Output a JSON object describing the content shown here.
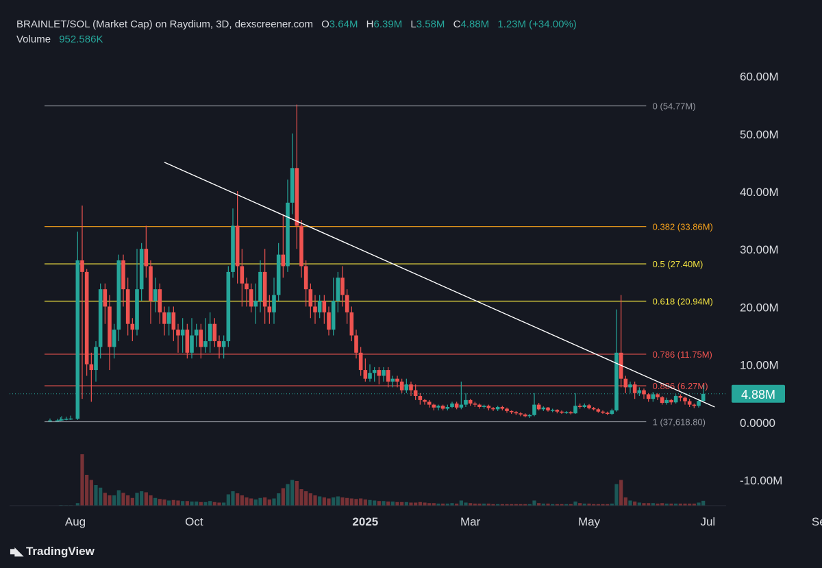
{
  "header": {
    "symbol_line": "BRAINLET/SOL (Market Cap) on Raydium, 3D, dexscreener.com",
    "o_label": "O",
    "o_value": "3.64M",
    "h_label": "H",
    "h_value": "6.39M",
    "l_label": "L",
    "l_value": "3.58M",
    "c_label": "C",
    "c_value": "4.88M",
    "change": "1.23M (+34.00%)",
    "volume_label": "Volume",
    "volume_value": "952.586K"
  },
  "brand": "TradingView",
  "colors": {
    "background": "#151821",
    "up": "#26a69a",
    "down": "#ef5350",
    "fib_orange": "#f7a21b",
    "fib_yellow": "#f2e241",
    "fib_red": "#e53935",
    "fib_grey": "#8a8d96",
    "trendline": "#ffffff",
    "price_tag": "#26a69a"
  },
  "chart_data": {
    "type": "candlestick",
    "x_tick_labels": [
      "Aug",
      "Oct",
      "2025",
      "Mar",
      "May",
      "Jul",
      "Sep"
    ],
    "y_tick_labels": [
      "60.00M",
      "50.00M",
      "40.00M",
      "30.00M",
      "20.00M",
      "10.00M",
      "0.0000",
      "-10.00M"
    ],
    "y_tick_values": [
      60,
      50,
      40,
      30,
      20,
      10,
      0,
      -10
    ],
    "y_unit": "M",
    "ylim": [
      -14.5,
      66
    ],
    "current_price_label": "4.88M",
    "current_price": 4.88,
    "fib_levels": [
      {
        "label": "0 (54.77M)",
        "value": 54.77,
        "color": "#9598a1"
      },
      {
        "label": "0.382 (33.86M)",
        "value": 33.86,
        "color": "#f7a21b"
      },
      {
        "label": "0.5 (27.40M)",
        "value": 27.4,
        "color": "#f2e241"
      },
      {
        "label": "0.618 (20.94M)",
        "value": 20.94,
        "color": "#f2e241"
      },
      {
        "label": "0.786 (11.75M)",
        "value": 11.75,
        "color": "#ef5350"
      },
      {
        "label": "0.886 (6.27M)",
        "value": 6.27,
        "color": "#ef5350"
      },
      {
        "label": "1 (37,618.80)",
        "value": 0.0376,
        "color": "#9598a1"
      }
    ],
    "trendline": [
      {
        "x": 54,
        "y": 45.0
      },
      {
        "x": 295,
        "y": 2.6
      }
    ],
    "candles": [
      [
        3.9,
        0.2,
        0.27,
        0.1,
        0.6,
        0.05
      ],
      [
        7.08,
        0.2,
        0.27,
        0.1,
        0.55,
        0.05
      ],
      [
        8.5,
        0.27,
        0.4,
        0.18,
        0.8,
        0.1
      ],
      [
        9.0,
        0.35,
        0.45,
        0.25,
        1.0,
        0.1
      ],
      [
        11.0,
        0.45,
        0.55,
        0.3,
        0.9,
        0.1
      ],
      [
        13.0,
        0.5,
        0.6,
        0.35,
        1.1,
        0.1
      ],
      [
        16.0,
        0.55,
        28.0,
        0.35,
        33.0,
        0.5
      ],
      [
        18.0,
        28.0,
        26.0,
        4.0,
        37.5,
        10.0
      ],
      [
        20.0,
        26.0,
        10.0,
        8.0,
        26.5,
        6.0
      ],
      [
        22.0,
        10.0,
        9.0,
        3.5,
        12.0,
        5.0
      ],
      [
        24.0,
        9.0,
        13.0,
        7.0,
        14.0,
        4.0
      ],
      [
        26.0,
        13.0,
        23.0,
        11.0,
        24.0,
        3.5
      ],
      [
        28.0,
        23.0,
        20.0,
        17.0,
        24.0,
        2.5
      ],
      [
        30.0,
        20.0,
        13.0,
        9.0,
        22.0,
        2.0
      ],
      [
        32.0,
        13.0,
        16.0,
        11.0,
        17.0,
        2.0
      ],
      [
        34.0,
        16.0,
        28.0,
        14.0,
        29.0,
        3.0
      ],
      [
        36.0,
        28.0,
        23.0,
        20.0,
        29.0,
        2.5
      ],
      [
        38.0,
        23.0,
        17.0,
        15.0,
        25.0,
        2.0
      ],
      [
        40.0,
        17.0,
        16.0,
        14.0,
        18.0,
        1.5
      ],
      [
        42.0,
        16.0,
        23.0,
        15.0,
        30.0,
        2.5
      ],
      [
        44.0,
        23.0,
        30.0,
        21.0,
        31.0,
        2.8
      ],
      [
        46.0,
        30.0,
        27.0,
        25.0,
        34.0,
        2.6
      ],
      [
        48.0,
        27.0,
        21.0,
        17.0,
        28.0,
        2.0
      ],
      [
        50.0,
        21.0,
        23.0,
        19.0,
        25.0,
        1.5
      ],
      [
        52.0,
        23.0,
        19.0,
        17.0,
        24.0,
        1.3
      ],
      [
        54.0,
        19.0,
        17.0,
        15.0,
        20.0,
        1.2
      ],
      [
        56.0,
        17.0,
        19.0,
        15.0,
        20.0,
        1.0
      ],
      [
        58.0,
        19.0,
        16.0,
        14.0,
        20.0,
        1.1
      ],
      [
        60.0,
        16.0,
        15.0,
        12.0,
        17.0,
        1.0
      ],
      [
        62.0,
        15.0,
        16.0,
        12.0,
        18.0,
        0.9
      ],
      [
        64.0,
        16.0,
        12.0,
        11.0,
        17.0,
        0.9
      ],
      [
        66.0,
        12.0,
        15.0,
        11.0,
        18.0,
        0.8
      ],
      [
        68.0,
        15.0,
        16.0,
        13.0,
        17.0,
        0.8
      ],
      [
        70.0,
        16.0,
        13.0,
        11.0,
        17.0,
        0.7
      ],
      [
        72.0,
        13.0,
        14.0,
        12.0,
        18.0,
        0.7
      ],
      [
        74.0,
        14.0,
        17.0,
        12.0,
        19.0,
        0.9
      ],
      [
        76.0,
        17.0,
        14.0,
        13.0,
        18.0,
        0.7
      ],
      [
        78.0,
        14.0,
        13.0,
        11.0,
        15.0,
        0.6
      ],
      [
        80.0,
        13.0,
        14.0,
        11.0,
        15.0,
        0.6
      ],
      [
        82.0,
        14.0,
        26.0,
        13.0,
        27.0,
        2.2
      ],
      [
        84.0,
        26.0,
        34.0,
        25.0,
        37.0,
        2.8
      ],
      [
        86.0,
        34.0,
        27.0,
        24.0,
        40.0,
        2.4
      ],
      [
        88.0,
        27.0,
        24.0,
        20.0,
        30.0,
        2.0
      ],
      [
        90.0,
        24.0,
        23.0,
        20.0,
        25.0,
        1.6
      ],
      [
        92.0,
        23.0,
        20.0,
        19.0,
        24.0,
        1.4
      ],
      [
        94.0,
        20.0,
        21.0,
        17.0,
        24.0,
        1.2
      ],
      [
        96.0,
        21.0,
        26.0,
        19.0,
        28.0,
        1.5
      ],
      [
        98.0,
        26.0,
        20.0,
        17.0,
        30.0,
        1.6
      ],
      [
        100.0,
        20.0,
        19.0,
        17.0,
        22.0,
        1.2
      ],
      [
        102.0,
        19.0,
        22.0,
        17.0,
        25.0,
        1.4
      ],
      [
        104.0,
        22.0,
        29.0,
        21.0,
        31.0,
        2.4
      ],
      [
        106.0,
        29.0,
        27.0,
        25.0,
        36.0,
        3.4
      ],
      [
        108.0,
        27.0,
        38.0,
        26.0,
        42.0,
        4.2
      ],
      [
        110.0,
        38.0,
        44.0,
        36.0,
        50.0,
        5.0
      ],
      [
        112.0,
        44.0,
        34.0,
        30.0,
        55.0,
        4.8
      ],
      [
        114.0,
        34.0,
        27.0,
        25.0,
        35.0,
        3.2
      ],
      [
        116.0,
        27.0,
        23.0,
        20.0,
        28.0,
        2.8
      ],
      [
        118.0,
        23.0,
        20.0,
        18.0,
        24.0,
        2.4
      ],
      [
        120.0,
        20.0,
        19.0,
        17.0,
        22.0,
        2.0
      ],
      [
        122.0,
        19.0,
        21.0,
        18.0,
        22.0,
        1.8
      ],
      [
        124.0,
        21.0,
        19.0,
        17.0,
        22.0,
        1.6
      ],
      [
        126.0,
        19.0,
        16.0,
        15.0,
        20.0,
        1.4
      ],
      [
        128.0,
        16.0,
        21.0,
        15.0,
        25.0,
        1.6
      ],
      [
        130.0,
        21.0,
        25.0,
        19.0,
        26.0,
        1.8
      ],
      [
        132.0,
        25.0,
        22.0,
        20.0,
        27.0,
        1.6
      ],
      [
        134.0,
        22.0,
        19.0,
        17.0,
        23.0,
        1.5
      ],
      [
        136.0,
        19.0,
        15.0,
        14.0,
        20.0,
        1.4
      ],
      [
        138.0,
        15.0,
        12.0,
        11.0,
        16.0,
        1.3
      ],
      [
        140.0,
        12.0,
        9.0,
        8.0,
        13.0,
        1.4
      ],
      [
        142.0,
        9.0,
        7.5,
        7.0,
        11.0,
        1.2
      ],
      [
        144.0,
        7.5,
        8.5,
        7.0,
        10.0,
        1.1
      ],
      [
        146.0,
        8.5,
        9.0,
        7.0,
        9.5,
        1.0
      ],
      [
        148.0,
        9.0,
        8.0,
        6.5,
        9.5,
        0.9
      ],
      [
        150.0,
        8.0,
        9.0,
        7.0,
        9.5,
        0.9
      ],
      [
        152.0,
        9.0,
        7.0,
        6.0,
        9.5,
        0.8
      ],
      [
        154.0,
        7.0,
        7.5,
        6.0,
        8.0,
        0.8
      ],
      [
        156.0,
        7.5,
        7.0,
        6.0,
        8.0,
        0.7
      ],
      [
        158.0,
        7.0,
        5.5,
        5.0,
        7.5,
        0.7
      ],
      [
        160.0,
        5.5,
        6.5,
        5.0,
        7.5,
        0.7
      ],
      [
        162.0,
        6.5,
        5.5,
        4.5,
        7.0,
        0.6
      ],
      [
        164.0,
        5.5,
        4.5,
        3.8,
        6.5,
        0.6
      ],
      [
        166.0,
        4.5,
        3.8,
        3.0,
        5.0,
        0.7
      ],
      [
        168.0,
        3.8,
        3.5,
        3.0,
        4.0,
        0.6
      ],
      [
        170.0,
        3.5,
        3.0,
        2.5,
        3.8,
        0.5
      ],
      [
        172.0,
        3.0,
        2.5,
        2.0,
        3.2,
        0.5
      ],
      [
        174.0,
        2.5,
        2.8,
        2.0,
        3.0,
        0.4
      ],
      [
        176.0,
        2.8,
        2.3,
        2.0,
        3.0,
        0.4
      ],
      [
        178.0,
        2.3,
        2.6,
        2.0,
        3.0,
        0.4
      ],
      [
        180.0,
        2.6,
        3.2,
        2.4,
        3.5,
        0.5
      ],
      [
        182.0,
        3.2,
        2.5,
        2.2,
        3.5,
        0.4
      ],
      [
        184.0,
        2.5,
        3.0,
        2.2,
        7.0,
        1.0
      ],
      [
        186.0,
        3.0,
        3.8,
        2.6,
        5.0,
        0.6
      ],
      [
        188.0,
        3.8,
        3.2,
        2.8,
        4.0,
        0.5
      ],
      [
        190.0,
        3.2,
        3.0,
        2.6,
        3.5,
        0.4
      ],
      [
        192.0,
        3.0,
        2.6,
        2.3,
        3.2,
        0.4
      ],
      [
        194.0,
        2.6,
        2.8,
        2.3,
        3.0,
        0.4
      ],
      [
        196.0,
        2.8,
        2.4,
        2.0,
        3.0,
        0.4
      ],
      [
        198.0,
        2.4,
        2.2,
        1.9,
        2.6,
        0.3
      ],
      [
        200.0,
        2.2,
        2.6,
        1.9,
        2.8,
        0.3
      ],
      [
        202.0,
        2.6,
        2.3,
        2.0,
        2.8,
        0.3
      ],
      [
        204.0,
        2.3,
        1.9,
        1.6,
        2.5,
        0.3
      ],
      [
        206.0,
        1.9,
        1.7,
        1.4,
        2.0,
        0.3
      ],
      [
        208.0,
        1.7,
        1.5,
        1.2,
        1.9,
        0.3
      ],
      [
        210.0,
        1.5,
        1.3,
        1.0,
        1.7,
        0.3
      ],
      [
        212.0,
        1.3,
        1.0,
        0.8,
        1.5,
        0.3
      ],
      [
        214.0,
        1.0,
        1.2,
        0.7,
        1.4,
        0.3
      ],
      [
        216.0,
        1.2,
        3.0,
        1.0,
        5.0,
        1.0
      ],
      [
        218.0,
        3.0,
        2.2,
        2.0,
        3.3,
        0.5
      ],
      [
        220.0,
        2.2,
        2.5,
        1.9,
        2.7,
        0.4
      ],
      [
        222.0,
        2.5,
        2.0,
        1.8,
        2.6,
        0.4
      ],
      [
        224.0,
        2.0,
        2.1,
        1.7,
        2.3,
        0.3
      ],
      [
        226.0,
        2.1,
        1.8,
        1.5,
        2.2,
        0.3
      ],
      [
        228.0,
        1.8,
        1.6,
        1.4,
        2.0,
        0.3
      ],
      [
        230.0,
        1.6,
        1.7,
        1.4,
        1.9,
        0.3
      ],
      [
        232.0,
        1.7,
        1.5,
        1.3,
        1.9,
        0.3
      ],
      [
        234.0,
        1.5,
        2.8,
        1.4,
        5.0,
        0.8
      ],
      [
        236.0,
        2.8,
        2.6,
        2.3,
        3.2,
        0.5
      ],
      [
        238.0,
        2.6,
        2.9,
        2.4,
        3.2,
        0.4
      ],
      [
        240.0,
        2.9,
        2.4,
        2.2,
        3.1,
        0.4
      ],
      [
        242.0,
        2.4,
        2.2,
        2.0,
        2.6,
        0.3
      ],
      [
        244.0,
        2.2,
        1.8,
        1.6,
        2.4,
        0.3
      ],
      [
        246.0,
        1.8,
        1.6,
        1.4,
        2.0,
        0.3
      ],
      [
        248.0,
        1.6,
        1.4,
        1.2,
        1.8,
        0.3
      ],
      [
        250.0,
        1.4,
        2.0,
        1.2,
        2.3,
        0.4
      ],
      [
        252.0,
        2.0,
        12.0,
        1.8,
        19.5,
        4.2
      ],
      [
        254.0,
        12.0,
        7.5,
        6.0,
        22.0,
        5.0
      ],
      [
        256.0,
        7.5,
        6.0,
        5.0,
        8.0,
        1.6
      ],
      [
        258.0,
        6.0,
        6.5,
        5.0,
        7.0,
        1.0
      ],
      [
        260.0,
        6.5,
        5.0,
        4.0,
        7.0,
        0.8
      ],
      [
        262.0,
        5.0,
        5.5,
        4.5,
        6.0,
        0.6
      ],
      [
        264.0,
        5.5,
        4.8,
        4.0,
        5.8,
        0.5
      ],
      [
        266.0,
        4.8,
        4.0,
        3.5,
        5.0,
        0.5
      ],
      [
        268.0,
        4.0,
        4.8,
        3.5,
        5.2,
        0.5
      ],
      [
        270.0,
        4.8,
        4.3,
        3.8,
        5.0,
        0.4
      ],
      [
        272.0,
        4.3,
        3.3,
        3.0,
        4.5,
        0.5
      ],
      [
        274.0,
        3.3,
        3.8,
        3.0,
        4.2,
        0.4
      ],
      [
        276.0,
        3.8,
        3.4,
        3.0,
        4.0,
        0.4
      ],
      [
        278.0,
        3.4,
        4.5,
        3.2,
        4.8,
        0.4
      ],
      [
        280.0,
        4.5,
        4.2,
        3.6,
        4.8,
        0.4
      ],
      [
        282.0,
        4.2,
        3.6,
        3.0,
        4.4,
        0.4
      ],
      [
        284.0,
        3.6,
        3.0,
        2.6,
        4.0,
        0.4
      ],
      [
        286.0,
        3.0,
        2.8,
        2.4,
        3.2,
        0.4
      ],
      [
        288.0,
        2.8,
        3.64,
        2.5,
        4.0,
        0.6
      ],
      [
        290.0,
        3.64,
        4.88,
        3.58,
        6.39,
        0.95
      ]
    ]
  }
}
